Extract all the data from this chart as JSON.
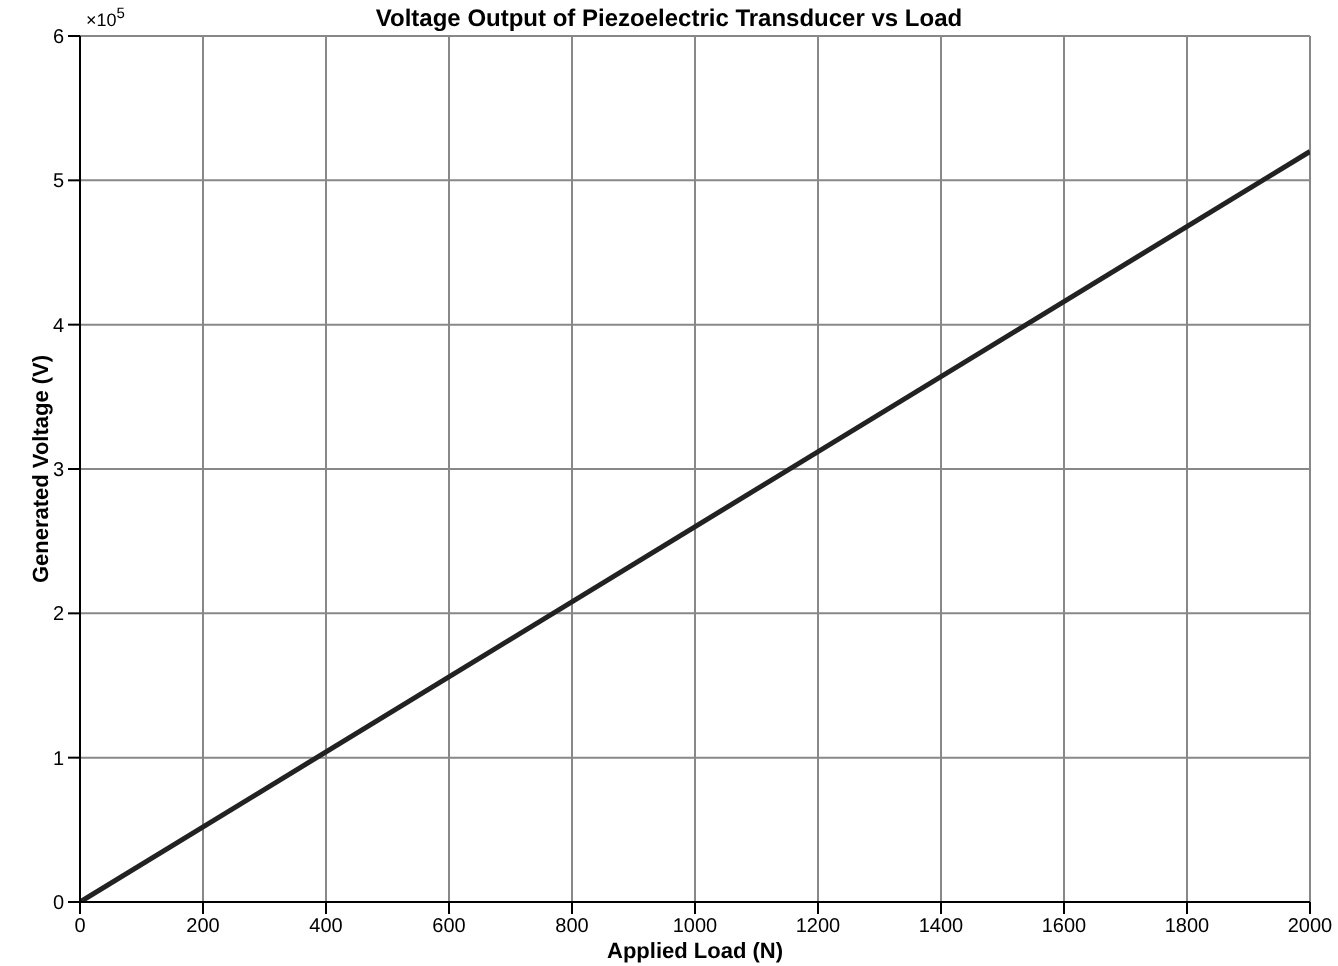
{
  "chart_data": {
    "type": "line",
    "title": "Voltage Output of Piezoelectric Transducer vs Load",
    "xlabel": "Applied Load (N)",
    "ylabel": "Generated Voltage (V)",
    "annotations": [
      "×10$^{5}$"
    ],
    "x": [
      0,
      2000
    ],
    "series": [
      {
        "color": "#222222",
        "values": [
          0,
          5.2
        ]
      }
    ],
    "xlim": [
      0,
      2000
    ],
    "xticks": [
      0,
      200,
      400,
      600,
      800,
      1000,
      1200,
      1400,
      1600,
      1800,
      2000
    ],
    "ylim": [
      0,
      6
    ],
    "yticks": [
      0,
      1,
      2,
      3,
      4,
      5,
      6
    ],
    "grid": true,
    "legend": false,
    "marker": "none",
    "line_style": "solid"
  }
}
